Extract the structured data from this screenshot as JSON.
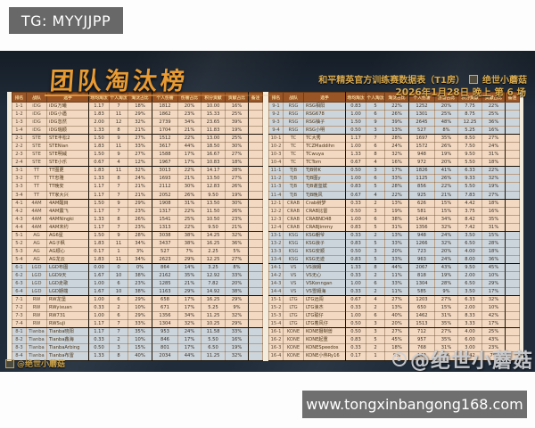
{
  "top_bar": {
    "tg_label": "TG: MYYJJPP"
  },
  "bottom_bar": {
    "url": "www.tongxinbangong168.com"
  },
  "banner": {
    "title": "团队淘汰榜",
    "subtitle": "和平精英官方训练赛数据表（T1房）",
    "author": "绝世小蘑菇",
    "date_line": "2026年1月28日 晚上 第 6 场"
  },
  "watermarks": {
    "bottom_left": "@绝世小蘑菇",
    "bottom_right": "@绝世小蘑菇"
  },
  "colors": {
    "stage_bg": "#202c3a",
    "header_brown": "#9a5526",
    "header_text_gold": "#f3d49a",
    "row_peach": "#f3d9c2",
    "row_blue": "#ccd5dc",
    "accent_gold": "#e89a33",
    "bar_gray": "#6f6f6f"
  },
  "table": {
    "headers": [
      "排名",
      "战队",
      "选手",
      "场均淘汰",
      "个人淘汰",
      "淘汰占比",
      "个人伤害",
      "伤害占比",
      "积分贡献",
      "贡献占比",
      "备注"
    ],
    "groups": [
      {
        "team": "iDG",
        "band": "peach",
        "rows": [
          [
            "1-1",
            "iDG万曦",
            "1.17",
            "7",
            "18%",
            "1812",
            "20%",
            "10.00",
            "16%",
            ""
          ],
          [
            "1-2",
            "iDG小遇",
            "1.83",
            "11",
            "29%",
            "1862",
            "23%",
            "15.33",
            "25%",
            ""
          ],
          [
            "1-3",
            "iDG忽然",
            "2.00",
            "12",
            "32%",
            "2739",
            "34%",
            "23.65",
            "39%",
            ""
          ],
          [
            "1-4",
            "iDG瑞顺",
            "1.33",
            "8",
            "21%",
            "1704",
            "21%",
            "11.83",
            "19%",
            ""
          ]
        ]
      },
      {
        "team": "STE",
        "band": "peach",
        "rows": [
          [
            "2-1",
            "STE丰松2",
            "1.50",
            "9",
            "27%",
            "1512",
            "22%",
            "13.00",
            "25%",
            ""
          ],
          [
            "2-2",
            "STENian",
            "1.83",
            "11",
            "33%",
            "3617",
            "44%",
            "18.50",
            "30%",
            ""
          ],
          [
            "2-3",
            "STE明威",
            "1.50",
            "9",
            "27%",
            "1588",
            "17%",
            "16.67",
            "27%",
            ""
          ],
          [
            "2-4",
            "STE小乐",
            "0.67",
            "4",
            "12%",
            "1967",
            "17%",
            "10.83",
            "18%",
            ""
          ]
        ]
      },
      {
        "team": "TT",
        "band": "peach",
        "rows": [
          [
            "3-1",
            "TT图更",
            "1.83",
            "11",
            "32%",
            "3013",
            "22%",
            "14.17",
            "28%",
            ""
          ],
          [
            "3-2",
            "TT忠雅",
            "1.33",
            "8",
            "24%",
            "1693",
            "21%",
            "13.50",
            "27%",
            ""
          ],
          [
            "3-3",
            "TT晚安",
            "1.17",
            "7",
            "21%",
            "2112",
            "30%",
            "12.83",
            "26%",
            ""
          ],
          [
            "3-4",
            "TT家大兴",
            "1.17",
            "7",
            "21%",
            "2052",
            "26%",
            "9.50",
            "19%",
            ""
          ]
        ]
      },
      {
        "team": "4AM",
        "band": "peach",
        "rows": [
          [
            "4-1",
            "4AM醒目",
            "1.50",
            "9",
            "29%",
            "1908",
            "31%",
            "13.50",
            "30%",
            ""
          ],
          [
            "4-2",
            "4AM震飞",
            "1.17",
            "7",
            "23%",
            "1317",
            "22%",
            "11.50",
            "26%",
            ""
          ],
          [
            "4-3",
            "4AMNingki",
            "1.33",
            "8",
            "26%",
            "1541",
            "25%",
            "10.50",
            "23%",
            ""
          ],
          [
            "4-4",
            "4AM末约",
            "1.17",
            "7",
            "23%",
            "1313",
            "22%",
            "9.50",
            "21%",
            ""
          ]
        ]
      },
      {
        "team": "AG",
        "band": "peach",
        "rows": [
          [
            "5-1",
            "AG6星",
            "1.50",
            "9",
            "28%",
            "3038",
            "38%",
            "14.25",
            "32%",
            ""
          ],
          [
            "5-2",
            "AG子枫",
            "1.83",
            "11",
            "34%",
            "3437",
            "38%",
            "16.25",
            "36%",
            ""
          ],
          [
            "5-3",
            "AG顺心",
            "0.17",
            "1",
            "3%",
            "527",
            "7%",
            "2.25",
            "5%",
            ""
          ],
          [
            "5-4",
            "AG龙云",
            "1.83",
            "11",
            "34%",
            "2623",
            "29%",
            "12.25",
            "27%",
            ""
          ]
        ]
      },
      {
        "team": "LGD",
        "band": "blue",
        "rows": [
          [
            "6-1",
            "LGD布图",
            "0.00",
            "0",
            "0%",
            "864",
            "14%",
            "3.25",
            "8%",
            ""
          ],
          [
            "6-2",
            "LGD9天",
            "1.67",
            "10",
            "38%",
            "2162",
            "35%",
            "12.92",
            "33%",
            ""
          ],
          [
            "6-3",
            "LGD走歌",
            "1.00",
            "6",
            "23%",
            "1285",
            "21%",
            "7.82",
            "20%",
            ""
          ],
          [
            "6-4",
            "LGD期端",
            "1.67",
            "10",
            "38%",
            "1163",
            "29%",
            "14.92",
            "38%",
            ""
          ]
        ]
      },
      {
        "team": "RW",
        "band": "peach",
        "rows": [
          [
            "7-1",
            "RW龙堡",
            "1.00",
            "6",
            "29%",
            "658",
            "17%",
            "16.25",
            "29%",
            ""
          ],
          [
            "7-2",
            "RWyixuan",
            "0.33",
            "2",
            "10%",
            "671",
            "17%",
            "5.25",
            "9%",
            ""
          ],
          [
            "7-3",
            "RW731",
            "1.00",
            "6",
            "29%",
            "1356",
            "34%",
            "11.25",
            "32%",
            ""
          ],
          [
            "7-4",
            "RWSuJi",
            "1.17",
            "7",
            "33%",
            "1304",
            "32%",
            "10.25",
            "29%",
            ""
          ]
        ]
      },
      {
        "team": "Tianba",
        "band": "blue",
        "rows": [
          [
            "8-1",
            "Tianba晓阳",
            "1.17",
            "7",
            "35%",
            "953",
            "24%",
            "11.58",
            "33%",
            ""
          ],
          [
            "8-2",
            "Tianba鑫海",
            "0.33",
            "2",
            "10%",
            "846",
            "17%",
            "5.50",
            "16%",
            ""
          ],
          [
            "8-3",
            "TianbaArbing",
            "0.50",
            "3",
            "15%",
            "801",
            "17%",
            "6.50",
            "19%",
            ""
          ],
          [
            "8-4",
            "Tianba布雷",
            "1.33",
            "8",
            "40%",
            "2034",
            "44%",
            "11.25",
            "32%",
            ""
          ]
        ]
      },
      {
        "team": "RSG",
        "band": "blue",
        "rows": [
          [
            "9-1",
            "RSG相阳",
            "0.83",
            "5",
            "22%",
            "1252",
            "20%",
            "7.75",
            "22%",
            ""
          ],
          [
            "9-2",
            "RSG678",
            "1.00",
            "6",
            "26%",
            "1301",
            "25%",
            "8.75",
            "25%",
            ""
          ],
          [
            "9-3",
            "RSG柚子",
            "1.50",
            "9",
            "39%",
            "2645",
            "48%",
            "12.25",
            "36%",
            ""
          ],
          [
            "9-4",
            "RSG小明",
            "0.50",
            "3",
            "13%",
            "527",
            "8%",
            "5.25",
            "16%",
            ""
          ]
        ]
      },
      {
        "team": "TC",
        "band": "peach",
        "rows": [
          [
            "10-1",
            "TC大秀",
            "1.17",
            "7",
            "28%",
            "1697",
            "35%",
            "8.50",
            "27%",
            ""
          ],
          [
            "10-2",
            "TCZMaddihn",
            "1.00",
            "6",
            "24%",
            "1572",
            "26%",
            "7.50",
            "24%",
            ""
          ],
          [
            "10-3",
            "TCwuya",
            "1.33",
            "8",
            "32%",
            "948",
            "19%",
            "9.50",
            "31%",
            ""
          ],
          [
            "10-4",
            "TCTom",
            "0.67",
            "4",
            "16%",
            "972",
            "20%",
            "5.50",
            "18%",
            ""
          ]
        ]
      },
      {
        "team": "TJB",
        "band": "blue",
        "rows": [
          [
            "11-1",
            "TJB帅K",
            "0.50",
            "3",
            "17%",
            "1826",
            "41%",
            "6.33",
            "22%",
            ""
          ],
          [
            "11-2",
            "TJB图y",
            "1.00",
            "6",
            "33%",
            "1125",
            "26%",
            "9.33",
            "32%",
            ""
          ],
          [
            "11-3",
            "TJB谢玺斌",
            "0.83",
            "5",
            "28%",
            "856",
            "22%",
            "5.50",
            "19%",
            ""
          ],
          [
            "11-4",
            "TJB晚风",
            "0.67",
            "4",
            "22%",
            "925",
            "21%",
            "7.83",
            "27%",
            ""
          ]
        ]
      },
      {
        "team": "CRAB",
        "band": "peach",
        "rows": [
          [
            "12-1",
            "Crab树梦",
            "0.33",
            "2",
            "13%",
            "626",
            "15%",
            "4.42",
            "18%",
            ""
          ],
          [
            "12-2",
            "CRAB比雷",
            "0.50",
            "3",
            "19%",
            "581",
            "15%",
            "3.75",
            "16%",
            ""
          ],
          [
            "12-3",
            "CRABND48",
            "1.00",
            "6",
            "38%",
            "1404",
            "34%",
            "8.42",
            "35%",
            ""
          ],
          [
            "12-4",
            "CRABJimmy",
            "0.83",
            "5",
            "31%",
            "1356",
            "32%",
            "7.42",
            "31%",
            ""
          ]
        ]
      },
      {
        "team": "KSG",
        "band": "blue",
        "rows": [
          [
            "13-1",
            "KSG朝爷",
            "0.33",
            "2",
            "13%",
            "948",
            "24%",
            "3.50",
            "15%",
            ""
          ],
          [
            "13-2",
            "KSG浪子",
            "0.83",
            "5",
            "33%",
            "1266",
            "32%",
            "6.50",
            "28%",
            ""
          ],
          [
            "13-3",
            "KSG安顺",
            "0.50",
            "3",
            "20%",
            "723",
            "20%",
            "4.00",
            "18%",
            ""
          ],
          [
            "13-4",
            "KSG无迹",
            "0.83",
            "5",
            "33%",
            "963",
            "24%",
            "8.00",
            "36%",
            ""
          ]
        ]
      },
      {
        "team": "VS",
        "band": "blue",
        "rows": [
          [
            "14-1",
            "VS浪姆",
            "1.33",
            "8",
            "44%",
            "2067",
            "43%",
            "9.50",
            "45%",
            ""
          ],
          [
            "14-2",
            "VS无心",
            "0.33",
            "2",
            "11%",
            "818",
            "19%",
            "2.00",
            "10%",
            ""
          ],
          [
            "14-3",
            "VSKonngan",
            "1.00",
            "6",
            "33%",
            "1304",
            "28%",
            "6.50",
            "29%",
            ""
          ],
          [
            "14-4",
            "VS雪姆海",
            "0.33",
            "2",
            "11%",
            "585",
            "9%",
            "3.50",
            "17%",
            ""
          ]
        ]
      },
      {
        "team": "LTG",
        "band": "peach",
        "rows": [
          [
            "15-1",
            "LTG远闯",
            "0.67",
            "4",
            "27%",
            "1203",
            "27%",
            "6.33",
            "32%",
            ""
          ],
          [
            "15-2",
            "LTG浪杰",
            "0.33",
            "2",
            "13%",
            "650",
            "15%",
            "2.00",
            "10%",
            ""
          ],
          [
            "15-3",
            "LTG聪仔",
            "1.00",
            "6",
            "40%",
            "1462",
            "31%",
            "8.33",
            "42%",
            ""
          ],
          [
            "15-4",
            "LTG着风仔",
            "0.50",
            "3",
            "20%",
            "1513",
            "35%",
            "3.33",
            "17%",
            ""
          ]
        ]
      },
      {
        "team": "KONE",
        "band": "peach",
        "rows": [
          [
            "16-1",
            "KONE摄制兽",
            "0.50",
            "3",
            "27%",
            "712",
            "27%",
            "4.00",
            "25%",
            ""
          ],
          [
            "16-2",
            "KONE起重",
            "0.83",
            "5",
            "45%",
            "957",
            "35%",
            "6.00",
            "43%",
            ""
          ],
          [
            "16-3",
            "KONESpeedos",
            "0.33",
            "2",
            "18%",
            "768",
            "31%",
            "3.00",
            "23%",
            ""
          ],
          [
            "16-4",
            "KONE小伟Ry16",
            "0.17",
            "1",
            "9%",
            "142",
            "5%",
            "1.42",
            "7%",
            ""
          ]
        ]
      }
    ]
  }
}
